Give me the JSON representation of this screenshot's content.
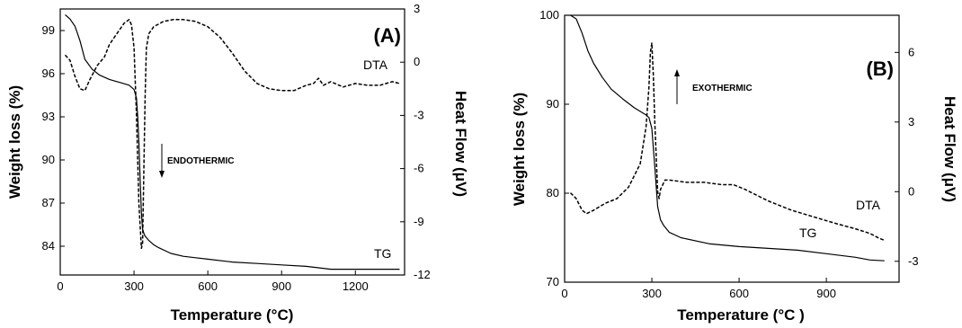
{
  "chart_data": [
    {
      "type": "line",
      "panel_label": "(A)",
      "xlabel": "Temperature (°C)",
      "ylabel_left": "Weight loss (%)",
      "ylabel_right": "Heat Flow (μV)",
      "xlim": [
        0,
        1400
      ],
      "ylim_left": [
        82,
        100.5
      ],
      "ylim_right": [
        -12,
        3
      ],
      "x_ticks": [
        "0",
        "300",
        "600",
        "900",
        "1200"
      ],
      "y_left_ticks": [
        "84",
        "87",
        "90",
        "93",
        "96",
        "99"
      ],
      "y_right_ticks": [
        "3",
        "0",
        "-3",
        "-6",
        "-9",
        "-12"
      ],
      "annotation": "ENDOTHERMIC",
      "series": [
        {
          "name": "TG",
          "axis": "left",
          "style": "solid",
          "x": [
            20,
            40,
            60,
            80,
            100,
            130,
            160,
            200,
            240,
            280,
            300,
            310,
            315,
            320,
            325,
            330,
            335,
            340,
            345,
            350,
            360,
            380,
            400,
            450,
            500,
            550,
            600,
            700,
            800,
            900,
            1000,
            1050,
            1100,
            1200,
            1300,
            1380
          ],
          "y": [
            100.1,
            99.8,
            99.3,
            98.3,
            97.0,
            96.3,
            95.9,
            95.6,
            95.4,
            95.2,
            94.9,
            94.3,
            93.0,
            91.2,
            88.6,
            86.3,
            85.2,
            84.9,
            84.7,
            84.6,
            84.4,
            84.1,
            83.9,
            83.5,
            83.3,
            83.2,
            83.1,
            82.9,
            82.8,
            82.7,
            82.6,
            82.5,
            82.4,
            82.4,
            82.4,
            82.4
          ]
        },
        {
          "name": "DTA",
          "axis": "right",
          "style": "dashed",
          "x": [
            20,
            40,
            60,
            80,
            100,
            120,
            150,
            180,
            200,
            230,
            260,
            280,
            290,
            300,
            310,
            320,
            330,
            335,
            345,
            350,
            360,
            380,
            420,
            460,
            500,
            550,
            600,
            650,
            700,
            750,
            800,
            850,
            900,
            950,
            1000,
            1030,
            1050,
            1070,
            1100,
            1150,
            1200,
            1250,
            1300,
            1350,
            1380
          ],
          "y": [
            0.4,
            0.1,
            -0.8,
            -1.5,
            -1.6,
            -1.0,
            -0.2,
            0.3,
            1.0,
            1.6,
            2.2,
            2.4,
            2.1,
            0.8,
            -3.0,
            -8.0,
            -10.5,
            -10.2,
            -2.0,
            0.8,
            1.6,
            2.0,
            2.3,
            2.4,
            2.4,
            2.3,
            2.0,
            1.4,
            0.5,
            -0.5,
            -1.2,
            -1.5,
            -1.6,
            -1.6,
            -1.3,
            -1.2,
            -0.9,
            -1.3,
            -1.1,
            -1.4,
            -1.2,
            -1.3,
            -1.3,
            -1.1,
            -1.2
          ]
        }
      ]
    },
    {
      "type": "line",
      "panel_label": "(B)",
      "xlabel": "Temperature (°C )",
      "ylabel_left": "Weight loss (%)",
      "ylabel_right": "Heat Flow (μV)",
      "xlim": [
        0,
        1150
      ],
      "ylim_left": [
        70,
        100
      ],
      "ylim_right": [
        -3.9,
        7.6
      ],
      "x_ticks": [
        "0",
        "300",
        "600",
        "900"
      ],
      "y_left_ticks": [
        "70",
        "80",
        "90",
        "100"
      ],
      "y_right_ticks": [
        "6",
        "3",
        "0",
        "-3"
      ],
      "annotation": "EXOTHERMIC",
      "series": [
        {
          "name": "TG",
          "axis": "left",
          "style": "solid",
          "x": [
            20,
            40,
            60,
            80,
            100,
            130,
            160,
            200,
            240,
            280,
            290,
            300,
            310,
            320,
            330,
            340,
            360,
            400,
            500,
            600,
            700,
            800,
            900,
            1000,
            1050,
            1100
          ],
          "y": [
            100,
            99.6,
            98.0,
            96.0,
            94.6,
            93.0,
            91.7,
            90.6,
            89.6,
            88.8,
            88.5,
            87.3,
            83.0,
            78.5,
            77.0,
            76.4,
            75.6,
            75.0,
            74.3,
            74.0,
            73.8,
            73.6,
            73.2,
            72.8,
            72.5,
            72.4
          ]
        },
        {
          "name": "DTA",
          "axis": "right",
          "style": "dashed",
          "x": [
            20,
            40,
            60,
            75,
            100,
            140,
            180,
            220,
            260,
            280,
            290,
            295,
            300,
            305,
            310,
            320,
            325,
            330,
            345,
            360,
            420,
            480,
            540,
            580,
            620,
            700,
            780,
            860,
            940,
            1000,
            1050,
            1080,
            1100
          ],
          "y": [
            -0.05,
            -0.3,
            -0.8,
            -0.95,
            -0.8,
            -0.5,
            -0.3,
            0.2,
            1.2,
            2.8,
            4.5,
            6.0,
            6.4,
            5.0,
            3.0,
            0.0,
            -0.3,
            0.1,
            0.5,
            0.5,
            0.4,
            0.4,
            0.3,
            0.3,
            0.1,
            -0.4,
            -0.8,
            -1.1,
            -1.4,
            -1.6,
            -1.8,
            -2.0,
            -2.1
          ]
        }
      ]
    }
  ]
}
